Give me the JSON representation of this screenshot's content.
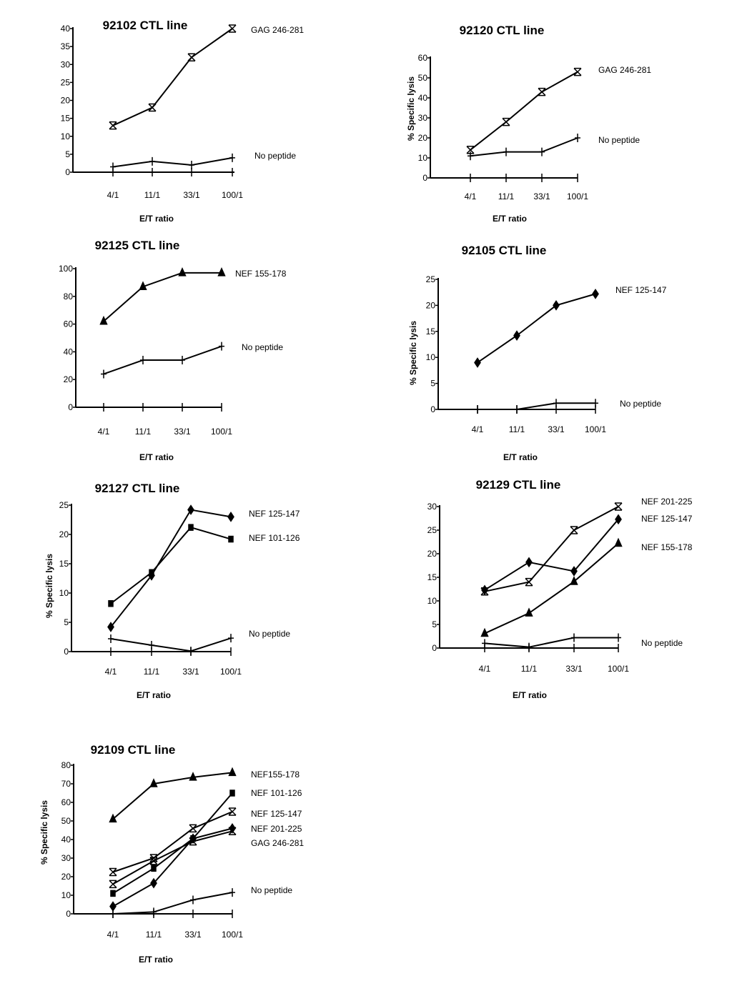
{
  "chart_data": [
    {
      "type": "line",
      "title": "92102 CTL line",
      "xlabel": "E/T ratio",
      "ylabel": "",
      "categories": [
        "4/1",
        "11/1",
        "33/1",
        "100/1"
      ],
      "ylim": [
        0,
        40
      ],
      "yticks": [
        0,
        5,
        10,
        15,
        20,
        25,
        30,
        35,
        40
      ],
      "series": [
        {
          "name": "GAG 246-281",
          "marker": "x",
          "values": [
            13,
            18,
            32,
            40
          ]
        },
        {
          "name": "No peptide",
          "marker": "plus",
          "values": [
            1.5,
            3,
            2,
            4
          ]
        }
      ]
    },
    {
      "type": "line",
      "title": "92120 CTL line",
      "xlabel": "E/T ratio",
      "ylabel": "% Specific lysis",
      "categories": [
        "4/1",
        "11/1",
        "33/1",
        "100/1"
      ],
      "ylim": [
        0,
        60
      ],
      "yticks": [
        0,
        10,
        20,
        30,
        40,
        50,
        60
      ],
      "series": [
        {
          "name": "GAG 246-281",
          "marker": "x",
          "values": [
            14,
            28,
            43,
            53
          ]
        },
        {
          "name": "No peptide",
          "marker": "plus",
          "values": [
            11,
            13,
            13,
            20
          ]
        }
      ]
    },
    {
      "type": "line",
      "title": "92125 CTL line",
      "xlabel": "E/T ratio",
      "ylabel": "",
      "categories": [
        "4/1",
        "11/1",
        "33/1",
        "100/1"
      ],
      "ylim": [
        0,
        100
      ],
      "yticks": [
        0,
        20,
        40,
        60,
        80,
        100
      ],
      "series": [
        {
          "name": "NEF 155-178",
          "marker": "triangle",
          "values": [
            62,
            87,
            97,
            97
          ]
        },
        {
          "name": "No peptide",
          "marker": "plus",
          "values": [
            24,
            34,
            34,
            44
          ]
        }
      ]
    },
    {
      "type": "line",
      "title": "92105 CTL line",
      "xlabel": "E/T ratio",
      "ylabel": "% Specific lysis",
      "categories": [
        "4/1",
        "11/1",
        "33/1",
        "100/1"
      ],
      "ylim": [
        0,
        25
      ],
      "yticks": [
        0,
        5,
        10,
        15,
        20,
        25
      ],
      "series": [
        {
          "name": "NEF 125-147",
          "marker": "diamond",
          "values": [
            9,
            14.2,
            20,
            22.2
          ]
        },
        {
          "name": "No peptide",
          "marker": "plus",
          "values": [
            0,
            0,
            1.2,
            1.2
          ]
        }
      ]
    },
    {
      "type": "line",
      "title": "92127 CTL line",
      "xlabel": "E/T ratio",
      "ylabel": "% Specific lysis",
      "categories": [
        "4/1",
        "11/1",
        "33/1",
        "100/1"
      ],
      "ylim": [
        0,
        25
      ],
      "yticks": [
        0,
        5,
        10,
        15,
        20,
        25
      ],
      "series": [
        {
          "name": "NEF 125-147",
          "marker": "diamond",
          "values": [
            4.2,
            13,
            24.2,
            23
          ]
        },
        {
          "name": "NEF 101-126",
          "marker": "square",
          "values": [
            8.2,
            13.5,
            21.2,
            19.2
          ]
        },
        {
          "name": "No peptide",
          "marker": "plus",
          "values": [
            2.2,
            1.1,
            0.1,
            2.3
          ]
        }
      ]
    },
    {
      "type": "line",
      "title": "92129 CTL line",
      "xlabel": "E/T ratio",
      "ylabel": "",
      "categories": [
        "4/1",
        "11/1",
        "33/1",
        "100/1"
      ],
      "ylim": [
        0,
        30
      ],
      "yticks": [
        0,
        5,
        10,
        15,
        20,
        25,
        30
      ],
      "series": [
        {
          "name": "NEF 201-225",
          "marker": "x",
          "values": [
            12,
            14,
            25,
            30
          ]
        },
        {
          "name": "NEF 125-147",
          "marker": "diamond",
          "values": [
            12.3,
            18.2,
            16.3,
            27.3
          ]
        },
        {
          "name": "NEF 155-178",
          "marker": "triangle",
          "values": [
            3.1,
            7.4,
            14.1,
            22.2
          ]
        },
        {
          "name": "No peptide",
          "marker": "plus",
          "values": [
            1,
            0.2,
            2.2,
            2.2
          ]
        }
      ]
    },
    {
      "type": "line",
      "title": "92109 CTL line",
      "xlabel": "E/T ratio",
      "ylabel": "% Specific lysis",
      "categories": [
        "4/1",
        "11/1",
        "33/1",
        "100/1"
      ],
      "ylim": [
        0,
        80
      ],
      "yticks": [
        0,
        10,
        20,
        30,
        40,
        50,
        60,
        70,
        80
      ],
      "series": [
        {
          "name": "NEF155-178",
          "marker": "triangle",
          "values": [
            51,
            70,
            73.5,
            76
          ]
        },
        {
          "name": "NEF 101-126",
          "marker": "square",
          "values": [
            11,
            24.5,
            40.5,
            65
          ]
        },
        {
          "name": "NEF 125-147",
          "marker": "x",
          "values": [
            22.5,
            30,
            46,
            55
          ]
        },
        {
          "name": "NEF 201-225",
          "marker": "diamond",
          "values": [
            4,
            16.5,
            40.5,
            46
          ]
        },
        {
          "name": "GAG 246-281",
          "marker": "x",
          "values": [
            16,
            28.5,
            39,
            44.5
          ]
        },
        {
          "name": "No peptide",
          "marker": "plus",
          "values": [
            0,
            1,
            7.5,
            11.5
          ]
        }
      ]
    }
  ]
}
